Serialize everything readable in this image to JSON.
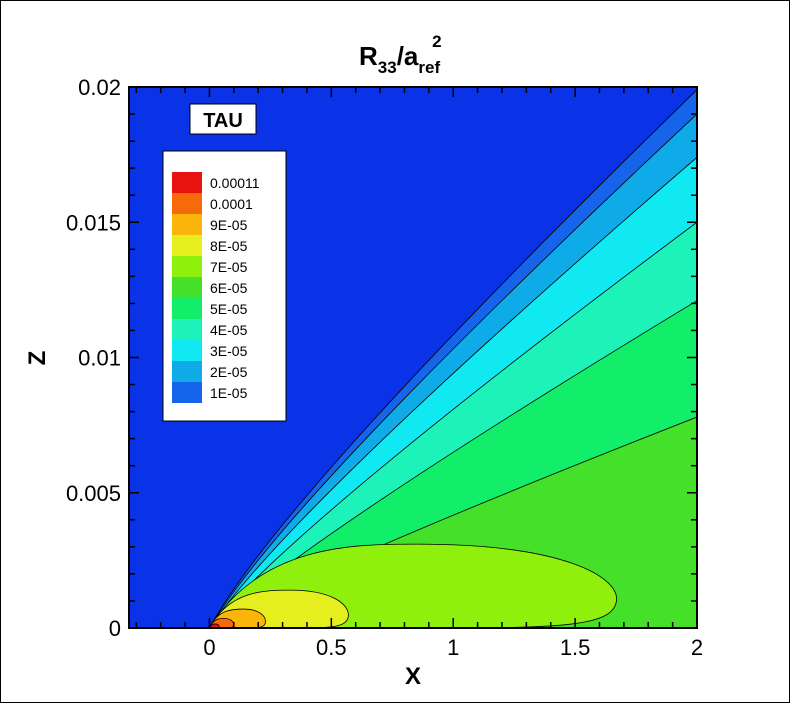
{
  "chart_data": {
    "type": "contour",
    "title": {
      "base": "R",
      "sub1": "33",
      "slash": "/a",
      "sub2": "ref",
      "sup": "2"
    },
    "xlabel": "X",
    "ylabel": "Z",
    "xlim": [
      -0.33,
      2.0
    ],
    "ylim": [
      0,
      0.02
    ],
    "xticks": [
      {
        "value": 0,
        "label": "0"
      },
      {
        "value": 0.5,
        "label": "0.5"
      },
      {
        "value": 1,
        "label": "1"
      },
      {
        "value": 1.5,
        "label": "1.5"
      },
      {
        "value": 2,
        "label": "2"
      }
    ],
    "yticks": [
      {
        "value": 0,
        "label": "0"
      },
      {
        "value": 0.005,
        "label": "0.005"
      },
      {
        "value": 0.01,
        "label": "0.01"
      },
      {
        "value": 0.015,
        "label": "0.015"
      },
      {
        "value": 0.02,
        "label": "0.02"
      }
    ],
    "annotation": "TAU",
    "legend": {
      "placement": "upper-left",
      "levels": [
        {
          "label": "0.00011",
          "value": 0.00011,
          "color": "#e8120e"
        },
        {
          "label": "0.0001",
          "value": 0.0001,
          "color": "#f76a0a"
        },
        {
          "label": "9E-05",
          "value": 9e-05,
          "color": "#fbb50a"
        },
        {
          "label": "8E-05",
          "value": 8e-05,
          "color": "#e6ee1e"
        },
        {
          "label": "7E-05",
          "value": 7e-05,
          "color": "#8ff00e"
        },
        {
          "label": "6E-05",
          "value": 6e-05,
          "color": "#45e02a"
        },
        {
          "label": "5E-05",
          "value": 5e-05,
          "color": "#12ee6a"
        },
        {
          "label": "4E-05",
          "value": 4e-05,
          "color": "#1df2b8"
        },
        {
          "label": "3E-05",
          "value": 3e-05,
          "color": "#10e8f2"
        },
        {
          "label": "2E-05",
          "value": 2e-05,
          "color": "#0faae8"
        },
        {
          "label": "1E-05",
          "value": 1e-05,
          "color": "#1564ea"
        }
      ]
    },
    "background_color": "#0a32e6",
    "regions": [
      {
        "level": 1e-05,
        "top_edge_z_at_x2": 0.0199
      },
      {
        "level": 2e-05,
        "top_edge_z_at_x2": 0.019
      },
      {
        "level": 3e-05,
        "top_edge_z_at_x2": 0.0174
      },
      {
        "level": 4e-05,
        "top_edge_z_at_x2": 0.015
      },
      {
        "level": 5e-05,
        "top_edge_z_at_x2": 0.0121
      },
      {
        "level": 6e-05,
        "top_edge_z_at_x2": 0.0078
      },
      {
        "level": 7e-05,
        "bubble_x_end": 1.67,
        "bubble_z_max": 0.0031,
        "bubble_x_peak": 0.85
      },
      {
        "level": 8e-05,
        "bubble_x_end": 0.57,
        "bubble_z_max": 0.0014,
        "bubble_x_peak": 0.33
      },
      {
        "level": 9e-05,
        "bubble_x_end": 0.23,
        "bubble_z_max": 0.0007,
        "bubble_x_peak": 0.14
      },
      {
        "level": 0.0001,
        "bubble_x_end": 0.1,
        "bubble_z_max": 0.00035,
        "bubble_x_peak": 0.06
      },
      {
        "level": 0.00011,
        "bubble_x_end": 0.04,
        "bubble_z_max": 0.00015,
        "bubble_x_peak": 0.025
      }
    ]
  }
}
